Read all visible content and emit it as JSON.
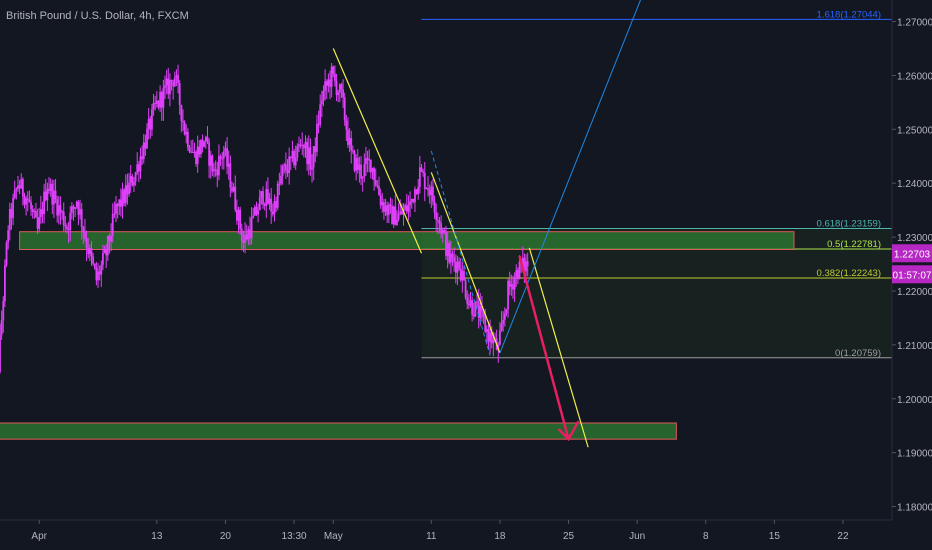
{
  "title": "British Pound / U.S. Dollar, 4h, FXCM",
  "colors": {
    "background": "#131722",
    "candle": "#e040fb",
    "axis_text": "#b2b5be",
    "zone_fill": "#2e7d32",
    "zone_border": "#e05a5a",
    "channel": "#f0f04a",
    "fib_line": "#2962ff",
    "projection": "#1e88e5",
    "arrow": "#e91e63",
    "price_tag": "#b727c4",
    "fib_618": "#4db6ac",
    "fib_5": "#aee34a",
    "fib_382": "#c0ca33",
    "fib_0": "#9e9e9e"
  },
  "chart_data": {
    "type": "candlestick",
    "title": "British Pound / U.S. Dollar, 4h, FXCM",
    "symbol": "GBPUSD",
    "timeframe": "4h",
    "source": "FXCM",
    "y_ticks": [
      "1.27000",
      "1.26000",
      "1.25000",
      "1.24000",
      "1.23000",
      "1.22000",
      "1.21000",
      "1.20000",
      "1.19000",
      "1.18000"
    ],
    "ylim": [
      1.1775,
      1.274
    ],
    "x_ticks": [
      "Apr",
      "13",
      "20",
      "13:30",
      "May",
      "11",
      "18",
      "25",
      "Jun",
      "8",
      "15",
      "22"
    ],
    "x_dates": [
      "2020-04-01",
      "2020-04-13",
      "2020-04-20",
      "2020-04-27",
      "2020-05-01",
      "2020-05-11",
      "2020-05-18",
      "2020-05-25",
      "2020-06-01",
      "2020-06-08",
      "2020-06-15",
      "2020-06-22"
    ],
    "xlim": [
      "2020-03-28",
      "2020-06-27"
    ],
    "price_path": [
      [
        "2020-03-27",
        1.193
      ],
      [
        "2020-03-28",
        1.206
      ],
      [
        "2020-03-29",
        1.232
      ],
      [
        "2020-03-30",
        1.24
      ],
      [
        "2020-03-31",
        1.237
      ],
      [
        "2020-04-01",
        1.231
      ],
      [
        "2020-04-02",
        1.24
      ],
      [
        "2020-04-03",
        1.236
      ],
      [
        "2020-04-04",
        1.232
      ],
      [
        "2020-04-05",
        1.237
      ],
      [
        "2020-04-06",
        1.229
      ],
      [
        "2020-04-07",
        1.222
      ],
      [
        "2020-04-08",
        1.227
      ],
      [
        "2020-04-09",
        1.235
      ],
      [
        "2020-04-10",
        1.238
      ],
      [
        "2020-04-11",
        1.242
      ],
      [
        "2020-04-12",
        1.248
      ],
      [
        "2020-04-13",
        1.254
      ],
      [
        "2020-04-14",
        1.257
      ],
      [
        "2020-04-15",
        1.26
      ],
      [
        "2020-04-16",
        1.25
      ],
      [
        "2020-04-17",
        1.245
      ],
      [
        "2020-04-18",
        1.248
      ],
      [
        "2020-04-19",
        1.242
      ],
      [
        "2020-04-20",
        1.246
      ],
      [
        "2020-04-21",
        1.238
      ],
      [
        "2020-04-22",
        1.229
      ],
      [
        "2020-04-23",
        1.233
      ],
      [
        "2020-04-24",
        1.238
      ],
      [
        "2020-04-25",
        1.235
      ],
      [
        "2020-04-26",
        1.242
      ],
      [
        "2020-04-27",
        1.244
      ],
      [
        "2020-04-28",
        1.248
      ],
      [
        "2020-04-29",
        1.243
      ],
      [
        "2020-04-30",
        1.256
      ],
      [
        "2020-05-01",
        1.26
      ],
      [
        "2020-05-02",
        1.256
      ],
      [
        "2020-05-03",
        1.245
      ],
      [
        "2020-05-04",
        1.242
      ],
      [
        "2020-05-05",
        1.244
      ],
      [
        "2020-05-06",
        1.237
      ],
      [
        "2020-05-07",
        1.234
      ],
      [
        "2020-05-08",
        1.234
      ],
      [
        "2020-05-09",
        1.236
      ],
      [
        "2020-05-10",
        1.242
      ],
      [
        "2020-05-11",
        1.239
      ],
      [
        "2020-05-12",
        1.233
      ],
      [
        "2020-05-13",
        1.226
      ],
      [
        "2020-05-14",
        1.225
      ],
      [
        "2020-05-15",
        1.218
      ],
      [
        "2020-05-16",
        1.216
      ],
      [
        "2020-05-17",
        1.212
      ],
      [
        "2020-05-18",
        1.209
      ],
      [
        "2020-05-19",
        1.22
      ],
      [
        "2020-05-20",
        1.224
      ],
      [
        "2020-05-21",
        1.225
      ]
    ],
    "zones": [
      {
        "type": "zone",
        "from_date": "2020-03-30",
        "to_date": "2020-06-17",
        "low": 1.2277,
        "high": 1.231
      },
      {
        "type": "zone",
        "from_date": "2020-03-27",
        "to_date": "2020-06-05",
        "low": 1.1925,
        "high": 1.1955
      }
    ],
    "fibonacci": {
      "levels": [
        {
          "value": 1.2704,
          "label": "1.618(1.27044)"
        },
        {
          "value": 1.2316,
          "label": "0.618(1.23159)"
        },
        {
          "value": 1.2278,
          "label": "0.5(1.22781)"
        },
        {
          "value": 1.2224,
          "label": "0.382(1.22243)"
        },
        {
          "value": 1.2076,
          "label": "0(1.20759)"
        }
      ]
    },
    "current_price": "1.22703",
    "countdown": "01:57:07"
  }
}
